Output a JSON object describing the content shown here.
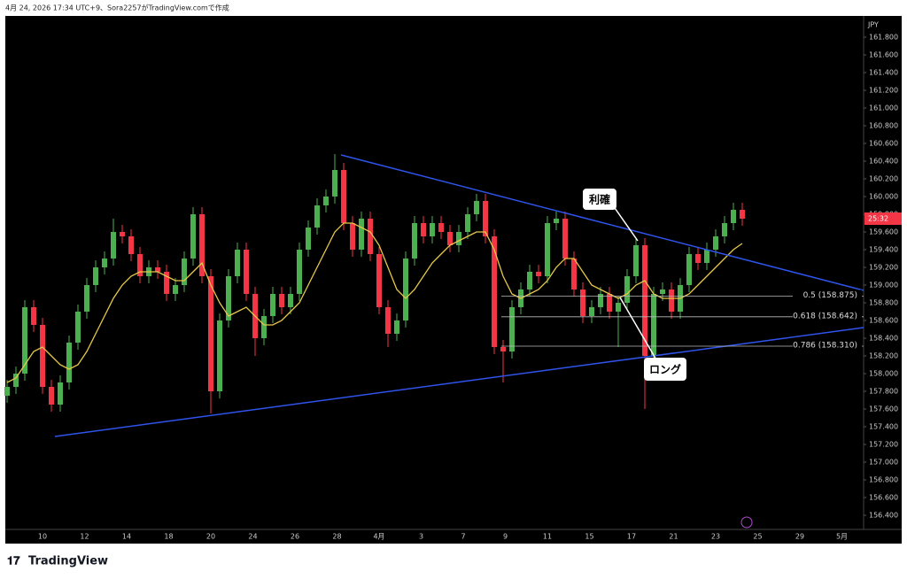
{
  "chart_data": {
    "type": "candlestick",
    "header": "4月 24, 2026 17:34 UTC+9、Sora2257がTradingView.comで作成",
    "currency": "JPY",
    "brand": "TradingView",
    "up_color": "#4caf50",
    "down_color": "#f23645",
    "ma_color": "#e6c84a",
    "trend_color": "#2f54eb",
    "grid": false,
    "ylim": [
      156.24,
      162.04
    ],
    "yticks": [
      {
        "value": 156.4,
        "label": "156.400"
      },
      {
        "value": 156.6,
        "label": "156.600"
      },
      {
        "value": 156.8,
        "label": "156.800"
      },
      {
        "value": 157,
        "label": "157.000"
      },
      {
        "value": 157.2,
        "label": "157.200"
      },
      {
        "value": 157.4,
        "label": "157.400"
      },
      {
        "value": 157.6,
        "label": "157.600"
      },
      {
        "value": 157.8,
        "label": "157.800"
      },
      {
        "value": 158,
        "label": "158.000"
      },
      {
        "value": 158.2,
        "label": "158.200"
      },
      {
        "value": 158.4,
        "label": "158.400"
      },
      {
        "value": 158.6,
        "label": "158.600"
      },
      {
        "value": 158.8,
        "label": "158.800"
      },
      {
        "value": 159,
        "label": "159.000"
      },
      {
        "value": 159.2,
        "label": "159.200"
      },
      {
        "value": 159.4,
        "label": "159.400"
      },
      {
        "value": 159.6,
        "label": "159.600"
      },
      {
        "value": 159.8,
        "label": "159.800"
      },
      {
        "value": 160,
        "label": "160.000"
      },
      {
        "value": 160.2,
        "label": "160.200"
      },
      {
        "value": 160.4,
        "label": "160.400"
      },
      {
        "value": 160.6,
        "label": "160.600"
      },
      {
        "value": 160.8,
        "label": "160.800"
      },
      {
        "value": 161,
        "label": "161.000"
      },
      {
        "value": 161.2,
        "label": "161.200"
      },
      {
        "value": 161.4,
        "label": "161.400"
      },
      {
        "value": 161.6,
        "label": "161.600"
      },
      {
        "value": 161.8,
        "label": "161.800"
      }
    ],
    "categories": [
      "10",
      "12",
      "14",
      "18",
      "20",
      "24",
      "26",
      "28",
      "4月",
      "3",
      "7",
      "9",
      "11",
      "15",
      "17",
      "21",
      "23",
      "25",
      "29",
      "5月"
    ],
    "open": [
      157.75,
      157.85,
      158.0,
      158.75,
      158.55,
      157.85,
      157.65,
      157.9,
      158.35,
      158.7,
      159.0,
      159.2,
      159.3,
      159.6,
      159.55,
      159.35,
      159.1,
      159.2,
      159.15,
      158.9,
      159.0,
      159.3,
      159.8,
      159.1,
      157.8,
      158.6,
      159.1,
      159.4,
      158.9,
      158.4,
      158.65,
      158.9,
      158.75,
      158.9,
      159.4,
      159.65,
      159.9,
      160.0,
      160.3,
      159.7,
      159.4,
      159.75,
      159.35,
      158.75,
      158.45,
      158.6,
      159.3,
      159.7,
      159.55,
      159.7,
      159.6,
      159.45,
      159.6,
      159.8,
      159.95,
      159.55,
      158.3,
      158.25,
      158.75,
      158.95,
      159.15,
      159.1,
      159.7,
      159.75,
      159.3,
      158.95,
      158.65,
      158.75,
      158.9,
      158.7,
      158.8,
      159.1,
      159.45,
      158.2,
      158.9,
      158.95,
      158.7,
      159.0,
      159.35,
      159.25,
      159.4,
      159.55,
      159.7,
      159.85
    ],
    "high": [
      157.93,
      158.08,
      158.83,
      158.83,
      158.63,
      157.93,
      157.98,
      158.43,
      158.78,
      159.08,
      159.28,
      159.38,
      159.75,
      159.68,
      159.63,
      159.43,
      159.28,
      159.28,
      159.23,
      159.08,
      159.38,
      159.88,
      159.88,
      159.18,
      158.68,
      159.18,
      159.48,
      159.48,
      158.98,
      158.73,
      158.98,
      158.98,
      158.98,
      159.48,
      159.73,
      159.98,
      160.08,
      160.48,
      160.38,
      159.78,
      159.83,
      159.83,
      159.43,
      158.83,
      158.68,
      159.38,
      159.78,
      159.78,
      159.78,
      159.78,
      159.68,
      159.68,
      159.88,
      160.03,
      160.03,
      159.63,
      158.38,
      158.83,
      159.03,
      159.23,
      159.23,
      159.78,
      159.83,
      159.83,
      159.38,
      159.03,
      158.83,
      158.98,
      158.98,
      158.88,
      159.18,
      159.53,
      159.53,
      158.98,
      159.03,
      159.03,
      159.08,
      159.43,
      159.43,
      159.48,
      159.63,
      159.78,
      159.93,
      159.93
    ],
    "low": [
      157.67,
      157.77,
      157.92,
      158.47,
      157.77,
      157.57,
      157.57,
      157.82,
      158.27,
      158.62,
      158.92,
      159.12,
      159.22,
      159.47,
      159.27,
      159.02,
      159.02,
      159.07,
      158.82,
      158.82,
      158.92,
      159.22,
      159.02,
      157.55,
      157.72,
      158.52,
      159.02,
      158.82,
      158.2,
      158.32,
      158.57,
      158.67,
      158.67,
      158.82,
      159.32,
      159.57,
      159.82,
      159.92,
      159.62,
      159.32,
      159.32,
      159.27,
      158.67,
      158.3,
      158.37,
      158.52,
      159.22,
      159.47,
      159.47,
      159.52,
      159.37,
      159.37,
      159.52,
      159.72,
      159.47,
      158.22,
      157.9,
      158.17,
      158.67,
      158.87,
      159.02,
      159.02,
      159.62,
      159.22,
      158.87,
      158.57,
      158.57,
      158.67,
      158.62,
      158.3,
      158.72,
      159.02,
      157.6,
      158.12,
      158.82,
      158.62,
      158.62,
      158.92,
      159.17,
      159.17,
      159.32,
      159.47,
      159.62,
      159.67
    ],
    "close": [
      157.85,
      158.0,
      158.75,
      158.55,
      157.85,
      157.65,
      157.9,
      158.35,
      158.7,
      159.0,
      159.2,
      159.3,
      159.6,
      159.55,
      159.35,
      159.1,
      159.2,
      159.15,
      158.9,
      159.0,
      159.3,
      159.8,
      159.1,
      157.8,
      158.6,
      159.1,
      159.4,
      158.9,
      158.4,
      158.65,
      158.9,
      158.75,
      158.9,
      159.4,
      159.65,
      159.9,
      160.0,
      160.3,
      159.7,
      159.4,
      159.75,
      159.35,
      158.75,
      158.45,
      158.6,
      159.3,
      159.7,
      159.55,
      159.7,
      159.6,
      159.45,
      159.6,
      159.8,
      159.95,
      159.55,
      158.3,
      158.25,
      158.75,
      158.95,
      159.15,
      159.1,
      159.7,
      159.75,
      159.3,
      158.95,
      158.65,
      158.75,
      158.9,
      158.7,
      158.8,
      159.1,
      159.45,
      158.2,
      158.9,
      158.95,
      158.7,
      159.0,
      159.35,
      159.25,
      159.4,
      159.55,
      159.7,
      159.85,
      159.75
    ],
    "ma": [
      157.9,
      157.95,
      158.1,
      158.25,
      158.3,
      158.2,
      158.1,
      158.05,
      158.1,
      158.25,
      158.45,
      158.65,
      158.85,
      159.0,
      159.1,
      159.15,
      159.15,
      159.15,
      159.1,
      159.05,
      159.05,
      159.15,
      159.25,
      159.0,
      158.8,
      158.65,
      158.7,
      158.75,
      158.65,
      158.55,
      158.55,
      158.6,
      158.7,
      158.8,
      159.0,
      159.2,
      159.4,
      159.6,
      159.7,
      159.7,
      159.65,
      159.6,
      159.45,
      159.2,
      158.95,
      158.85,
      158.95,
      159.1,
      159.25,
      159.35,
      159.45,
      159.5,
      159.55,
      159.6,
      159.6,
      159.4,
      159.1,
      158.9,
      158.85,
      158.9,
      158.95,
      159.05,
      159.2,
      159.3,
      159.3,
      159.15,
      159.0,
      158.95,
      158.9,
      158.85,
      158.9,
      159.0,
      159.05,
      158.9,
      158.85,
      158.85,
      158.85,
      158.9,
      159.0,
      159.1,
      159.2,
      159.3,
      159.4,
      159.47
    ],
    "trendlines": [
      {
        "x": [
          37.7,
          96.7
        ],
        "y": [
          160.47,
          158.94
        ]
      },
      {
        "x": [
          5.4,
          96.7
        ],
        "y": [
          157.29,
          158.52
        ]
      }
    ],
    "fib_levels": [
      {
        "value": 158.875,
        "label": "0.5 (158.875)"
      },
      {
        "value": 158.642,
        "label": "0.618 (158.642)"
      },
      {
        "value": 158.31,
        "label": "0.786 (158.310)"
      }
    ],
    "last_price": {
      "value": 159.75,
      "label": "25:32"
    },
    "annotations": [
      "利確",
      "ロング"
    ]
  }
}
